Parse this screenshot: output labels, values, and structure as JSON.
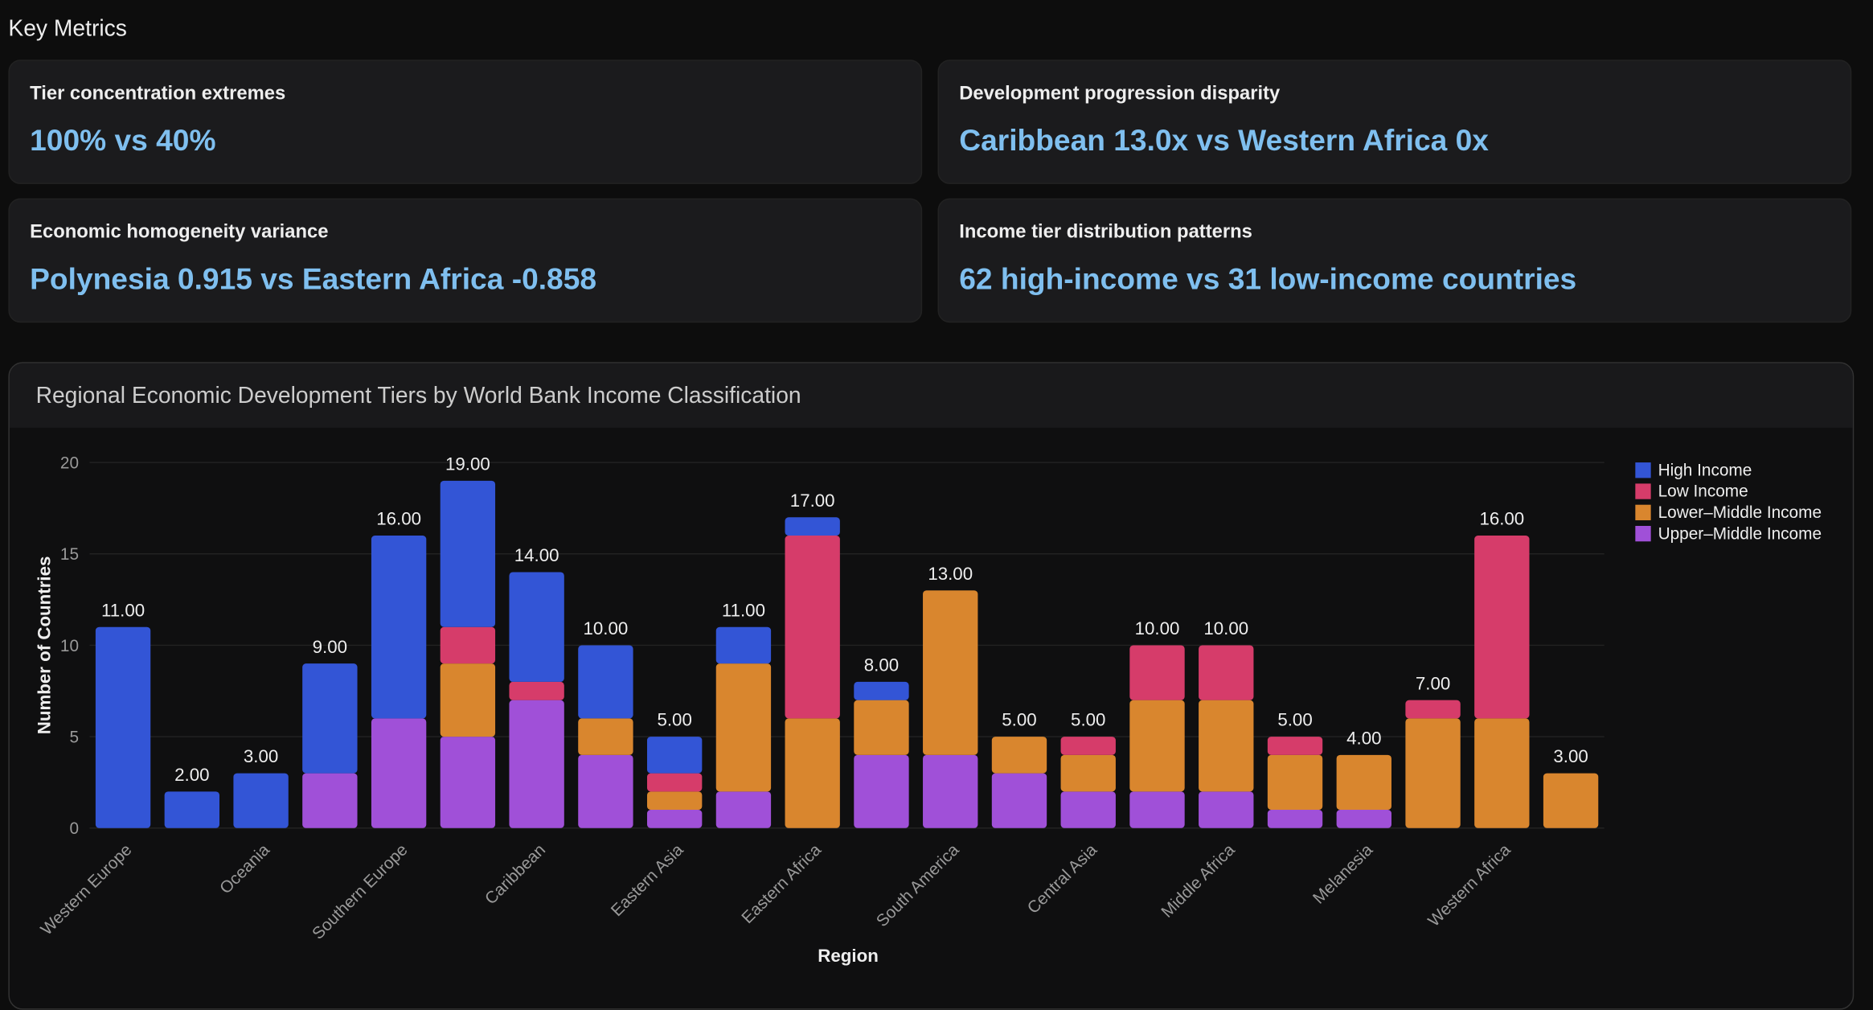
{
  "header": {
    "title": "Key Metrics"
  },
  "metrics": [
    {
      "label": "Tier concentration extremes",
      "value": "100% vs 40%"
    },
    {
      "label": "Development progression disparity",
      "value": "Caribbean 13.0x vs Western Africa 0x"
    },
    {
      "label": "Economic homogeneity variance",
      "value": "Polynesia 0.915 vs Eastern Africa -0.858"
    },
    {
      "label": "Income tier distribution patterns",
      "value": "62 high-income vs 31 low-income countries"
    }
  ],
  "chart_data": {
    "type": "stacked_bar",
    "title": "Regional Economic Development Tiers by World Bank Income Classification",
    "x_label": "Region",
    "y_label": "Number of Countries",
    "categories": [
      "Western Europe",
      null,
      "Oceania",
      null,
      "Southern Europe",
      null,
      "Caribbean",
      null,
      "Eastern Asia",
      null,
      "Eastern Africa",
      null,
      "South America",
      null,
      "Central Asia",
      null,
      "Middle Africa",
      null,
      "Melanesia",
      null,
      "Western Africa",
      null
    ],
    "series": [
      {
        "name": "High Income",
        "color": "#3355d6",
        "values": [
          11,
          2,
          3,
          6,
          10,
          8,
          6,
          4,
          2,
          2,
          1,
          1,
          0,
          0,
          0,
          0,
          0,
          0,
          0,
          0,
          0,
          0
        ]
      },
      {
        "name": "Low Income",
        "color": "#d63c6a",
        "values": [
          0,
          0,
          0,
          0,
          0,
          2,
          1,
          0,
          1,
          0,
          10,
          0,
          0,
          0,
          1,
          3,
          3,
          1,
          0,
          1,
          10,
          0
        ]
      },
      {
        "name": "Lower–Middle Income",
        "color": "#d9862e",
        "values": [
          0,
          0,
          0,
          0,
          0,
          4,
          0,
          2,
          1,
          7,
          6,
          3,
          9,
          2,
          2,
          5,
          5,
          3,
          3,
          6,
          6,
          3
        ]
      },
      {
        "name": "Upper–Middle Income",
        "color": "#a050d8",
        "values": [
          0,
          0,
          0,
          3,
          6,
          5,
          7,
          4,
          1,
          2,
          0,
          4,
          4,
          3,
          2,
          2,
          2,
          1,
          1,
          0,
          0,
          0
        ]
      }
    ],
    "totals": [
      11,
      2,
      3,
      9,
      16,
      19,
      14,
      10,
      5,
      11,
      17,
      8,
      13,
      5,
      5,
      10,
      10,
      5,
      4,
      7,
      16,
      3
    ],
    "total_labels": [
      "11.00",
      "2.00",
      "3.00",
      "9.00",
      "16.00",
      "19.00",
      "14.00",
      "10.00",
      "5.00",
      "11.00",
      "17.00",
      "8.00",
      "13.00",
      "5.00",
      "5.00",
      "10.00",
      "10.00",
      "5.00",
      "4.00",
      "7.00",
      "16.00",
      "3.00"
    ],
    "ylim": [
      0,
      20
    ],
    "yticks": [
      0,
      5,
      10,
      15,
      20
    ],
    "grid": true,
    "legend": "top-right"
  }
}
